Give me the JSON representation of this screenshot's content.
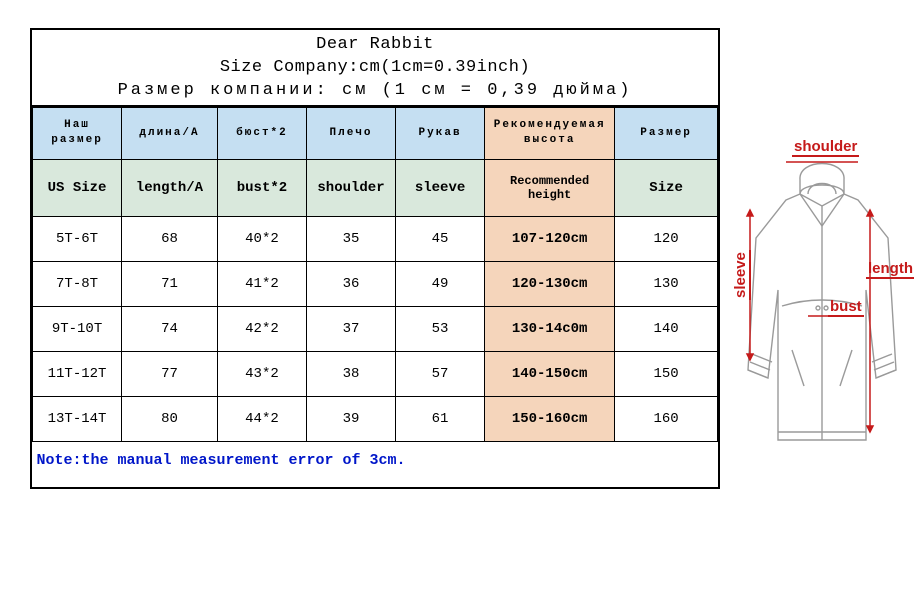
{
  "title": {
    "line1": "Dear Rabbit",
    "line2": "Size Company:cm(1cm=0.39inch)",
    "line3": "Размер компании: см (1 см = 0,39 дюйма)"
  },
  "columns_ru": [
    "Наш размер",
    "длина/A",
    "бюст*2",
    "Плечо",
    "Рукав",
    "Рекомендуемая высота",
    "Размер"
  ],
  "columns_en": [
    "US Size",
    "length/A",
    "bust*2",
    "shoulder",
    "sleeve",
    "Recommended height",
    "Size"
  ],
  "rows": [
    {
      "size": "5T-6T",
      "length": "68",
      "bust": "40*2",
      "shoulder": "35",
      "sleeve": "45",
      "rec": "107-120cm",
      "sz": "120"
    },
    {
      "size": "7T-8T",
      "length": "71",
      "bust": "41*2",
      "shoulder": "36",
      "sleeve": "49",
      "rec": "120-130cm",
      "sz": "130"
    },
    {
      "size": "9T-10T",
      "length": "74",
      "bust": "42*2",
      "shoulder": "37",
      "sleeve": "53",
      "rec": "130-14c0m",
      "sz": "140"
    },
    {
      "size": "11T-12T",
      "length": "77",
      "bust": "43*2",
      "shoulder": "38",
      "sleeve": "57",
      "rec": "140-150cm",
      "sz": "150"
    },
    {
      "size": "13T-14T",
      "length": "80",
      "bust": "44*2",
      "shoulder": "39",
      "sleeve": "61",
      "rec": "150-160cm",
      "sz": "160"
    }
  ],
  "note": "Note:the manual measurement error of 3cm.",
  "diagram_labels": {
    "shoulder": "shoulder",
    "sleeve": "sleeve",
    "bust": "bust",
    "length": "length"
  },
  "colors": {
    "header_ru_bg": "#c5dff2",
    "header_en_bg": "#d9e8dc",
    "rec_bg": "#f5d5bb",
    "note_color": "#0016c9",
    "label_color": "#c51a1a",
    "jacket_stroke": "#9a9a9a"
  },
  "col_widths_pct": [
    13,
    14,
    13,
    13,
    13,
    19,
    15
  ]
}
